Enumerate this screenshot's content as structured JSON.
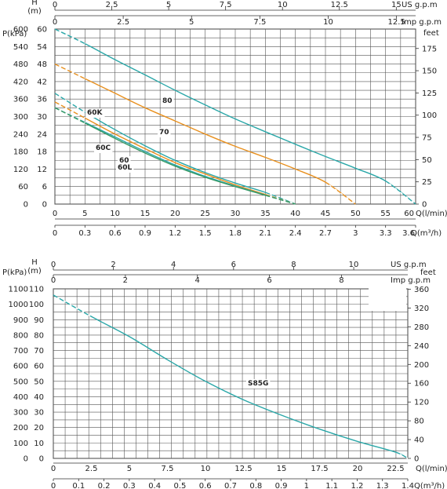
{
  "chart_data": [
    {
      "type": "line",
      "left_axis_title": "P(kPa)",
      "head_axis_title_1": "H",
      "head_axis_title_2": "(m)",
      "top_axis_us": "US  g.p.m",
      "top_axis_imp": "Imp  g.p.m",
      "right_axis_title": "feet",
      "x_axis_title_lmin": "Q(l/min)",
      "x_axis_title_m3h": "Q(m³/h)",
      "p_ticks": [
        "600",
        "540",
        "480",
        "420",
        "360",
        "300",
        "240",
        "180",
        "120",
        "60",
        "0"
      ],
      "h_ticks": [
        "60",
        "54",
        "48",
        "42",
        "36",
        "30",
        "24",
        "18",
        "12",
        "6",
        "0"
      ],
      "feet_ticks": [
        "175",
        "150",
        "125",
        "100",
        "75",
        "50",
        "25",
        "0"
      ],
      "us_ticks": [
        "0",
        "2.5",
        "5",
        "7.5",
        "10",
        "12.5",
        "15"
      ],
      "imp_ticks": [
        "0",
        "2.5",
        "5",
        "7.5",
        "10",
        "12.5"
      ],
      "q_lmin_ticks": [
        "0",
        "5",
        "10",
        "15",
        "20",
        "25",
        "30",
        "35",
        "40",
        "45",
        "50",
        "55",
        "60"
      ],
      "q_m3h_ticks": [
        "0",
        "0.3",
        "0.6",
        "0.9",
        "1.2",
        "1.5",
        "1.8",
        "2.1",
        "2.4",
        "2.7",
        "3",
        "3.3",
        "3.6"
      ],
      "xlim": [
        0,
        60
      ],
      "ylim": [
        0,
        60
      ],
      "colors": {
        "teal": "#2aa7a8",
        "orange": "#e8901e",
        "green": "#3a9a66",
        "grid": "#555555"
      },
      "series": [
        {
          "name": "80",
          "color": "#2aa7a8",
          "x": [
            0,
            5,
            10,
            15,
            20,
            25,
            30,
            35,
            40,
            45,
            50,
            55,
            60
          ],
          "y": [
            60,
            55,
            49.5,
            44.3,
            39,
            34,
            29.2,
            24.8,
            20.5,
            16.3,
            12.3,
            7.9,
            0
          ]
        },
        {
          "name": "70",
          "color": "#e8901e",
          "x": [
            0,
            5,
            10,
            15,
            20,
            25,
            30,
            35,
            40,
            45,
            50
          ],
          "y": [
            48,
            43,
            38,
            33,
            28.5,
            24,
            19.8,
            16,
            12,
            7.5,
            0
          ]
        },
        {
          "name": "60K",
          "color": "#2aa7a8",
          "x": [
            0,
            5,
            10,
            15,
            20,
            25,
            30,
            35,
            40
          ],
          "y": [
            38,
            31.5,
            25.5,
            20,
            15,
            10.8,
            7.2,
            4,
            0
          ]
        },
        {
          "name": "60",
          "color": "#e8901e",
          "x": [
            0,
            5,
            10,
            15,
            20,
            25,
            30,
            35,
            40
          ],
          "y": [
            35,
            29.5,
            24,
            19,
            14.2,
            10.3,
            6.6,
            3.3,
            0
          ]
        },
        {
          "name": "60C",
          "color": "#2aa7a8",
          "x": [
            0,
            5,
            10,
            15,
            20,
            25,
            30,
            35,
            40
          ],
          "y": [
            33,
            28,
            23,
            18,
            13.4,
            9.5,
            6.2,
            3.1,
            0
          ]
        },
        {
          "name": "60L",
          "color": "#3a9a66",
          "x": [
            0,
            5,
            10,
            15,
            20,
            25,
            30,
            35,
            40
          ],
          "y": [
            33,
            27.8,
            22.5,
            17.5,
            13,
            9.2,
            6,
            3,
            0
          ]
        }
      ]
    },
    {
      "type": "line",
      "left_axis_title": "P(kPa)",
      "head_axis_title_1": "H",
      "head_axis_title_2": "(m)",
      "top_axis_us": "US  g.p.m",
      "top_axis_imp": "Imp  g.p.m",
      "right_axis_title": "feet",
      "x_axis_title_lmin": "Q(l/min)",
      "x_axis_title_m3h": "Q(m³/h)",
      "p_ticks": [
        "1100",
        "1000",
        "900",
        "800",
        "700",
        "600",
        "500",
        "400",
        "300",
        "200",
        "100",
        "0"
      ],
      "h_ticks": [
        "110",
        "100",
        "90",
        "80",
        "70",
        "60",
        "50",
        "40",
        "30",
        "20",
        "10",
        "0"
      ],
      "feet_ticks": [
        "360",
        "320",
        "280",
        "240",
        "200",
        "160",
        "120",
        "80",
        "40",
        "0"
      ],
      "us_ticks": [
        "0",
        "2",
        "4",
        "6",
        "8",
        "10"
      ],
      "imp_ticks": [
        "0",
        "2",
        "4",
        "6",
        "8"
      ],
      "q_lmin_ticks": [
        "0",
        "2.5",
        "5",
        "7.5",
        "10",
        "12.5",
        "15",
        "17.5",
        "20",
        "22.5"
      ],
      "q_m3h_ticks": [
        "0",
        "0.1",
        "0.2",
        "0.3",
        "0.4",
        "0.5",
        "0.6",
        "0.7",
        "0.8",
        "0.9",
        "1",
        "1.1",
        "1.2",
        "1.3",
        "1.4"
      ],
      "xlim": [
        0,
        23.3
      ],
      "ylim": [
        0,
        110
      ],
      "colors": {
        "teal": "#2aa7a8",
        "grid": "#555555"
      },
      "series": [
        {
          "name": "S85G",
          "color": "#2aa7a8",
          "x": [
            0,
            2.5,
            5,
            7.5,
            10,
            12.5,
            15,
            17.5,
            20,
            22.5,
            23.3
          ],
          "y": [
            106,
            92,
            79,
            64,
            50,
            38,
            28,
            19,
            11,
            4,
            0
          ]
        }
      ]
    }
  ]
}
